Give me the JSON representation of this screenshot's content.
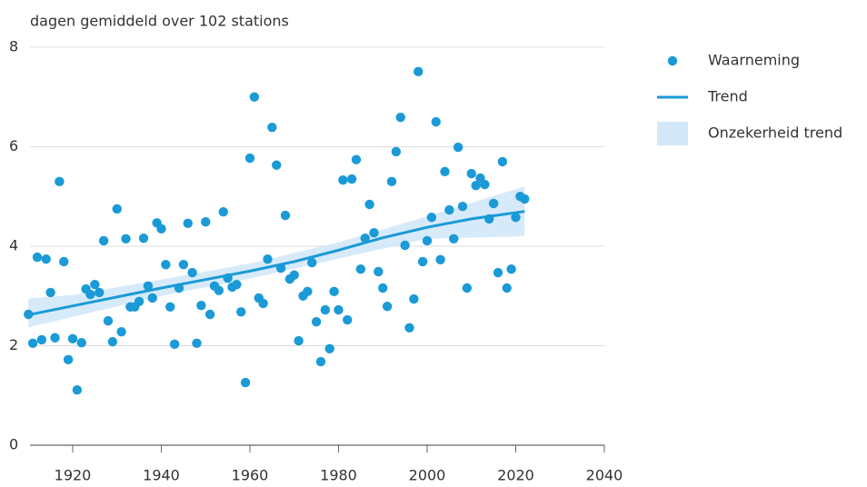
{
  "chart_data": {
    "type": "scatter",
    "y_label": "dagen gemiddeld over 102 stations",
    "xlim": [
      1910,
      2040
    ],
    "xticks": [
      1920,
      1940,
      1960,
      1980,
      2000,
      2020,
      2040
    ],
    "ylim": [
      0,
      8
    ],
    "yticks": [
      0,
      2,
      4,
      6,
      8
    ],
    "grid": true,
    "legend": "right",
    "series": [
      {
        "name": "Waarneming",
        "type": "scatter",
        "color": "#1a9ad6",
        "x": [
          1910,
          1911,
          1912,
          1913,
          1914,
          1915,
          1916,
          1917,
          1918,
          1919,
          1920,
          1921,
          1922,
          1923,
          1924,
          1925,
          1926,
          1927,
          1928,
          1929,
          1930,
          1931,
          1932,
          1933,
          1934,
          1935,
          1936,
          1937,
          1938,
          1939,
          1940,
          1941,
          1942,
          1943,
          1944,
          1945,
          1946,
          1947,
          1948,
          1949,
          1950,
          1951,
          1952,
          1953,
          1954,
          1955,
          1956,
          1957,
          1958,
          1959,
          1960,
          1961,
          1962,
          1963,
          1964,
          1965,
          1966,
          1967,
          1968,
          1969,
          1970,
          1971,
          1972,
          1973,
          1974,
          1975,
          1976,
          1977,
          1978,
          1979,
          1980,
          1981,
          1982,
          1983,
          1984,
          1985,
          1986,
          1987,
          1988,
          1989,
          1990,
          1991,
          1992,
          1993,
          1994,
          1995,
          1996,
          1997,
          1998,
          1999,
          2000,
          2001,
          2002,
          2003,
          2004,
          2005,
          2006,
          2007,
          2008,
          2009,
          2010,
          2011,
          2012,
          2013,
          2014,
          2015,
          2016,
          2017,
          2018,
          2019,
          2020,
          2021,
          2022
        ],
        "values": [
          2.63,
          2.05,
          3.78,
          2.12,
          3.74,
          3.07,
          2.16,
          5.3,
          3.69,
          1.72,
          2.14,
          1.11,
          2.06,
          3.14,
          3.03,
          3.23,
          3.07,
          4.11,
          2.5,
          2.08,
          4.75,
          2.28,
          4.15,
          2.78,
          2.78,
          2.89,
          4.16,
          3.2,
          2.96,
          4.47,
          4.35,
          3.63,
          2.78,
          2.03,
          3.16,
          3.63,
          4.46,
          3.47,
          2.05,
          2.81,
          4.49,
          2.63,
          3.2,
          3.11,
          4.69,
          3.36,
          3.18,
          3.23,
          2.68,
          1.26,
          5.77,
          7.0,
          2.96,
          2.85,
          3.74,
          6.39,
          5.63,
          3.56,
          4.62,
          3.34,
          3.42,
          2.1,
          3.0,
          3.09,
          3.67,
          2.48,
          1.68,
          2.72,
          1.94,
          3.09,
          2.72,
          5.33,
          2.52,
          5.35,
          5.74,
          3.54,
          4.16,
          4.84,
          4.27,
          3.49,
          3.16,
          2.79,
          5.3,
          5.9,
          6.59,
          4.02,
          2.36,
          2.94,
          7.51,
          3.69,
          4.11,
          4.58,
          6.5,
          3.73,
          5.5,
          4.73,
          4.15,
          5.99,
          4.8,
          3.16,
          5.46,
          5.22,
          5.37,
          5.24,
          4.55,
          4.86,
          3.47,
          5.7,
          3.16,
          3.54,
          4.58,
          5.0,
          4.95
        ]
      },
      {
        "name": "Trend",
        "type": "line",
        "color": "#1a9ad6",
        "x": [
          1910,
          1920,
          1930,
          1940,
          1950,
          1960,
          1970,
          1980,
          1990,
          2000,
          2010,
          2022
        ],
        "values": [
          2.62,
          2.8,
          2.98,
          3.16,
          3.33,
          3.5,
          3.69,
          3.92,
          4.17,
          4.38,
          4.55,
          4.7
        ]
      },
      {
        "name": "Onzekerheid trend",
        "type": "area",
        "color": "#d3e8f8",
        "x": [
          1910,
          1920,
          1940,
          1960,
          1980,
          2000,
          2022
        ],
        "lower": [
          2.37,
          2.58,
          3.0,
          3.35,
          3.75,
          4.15,
          4.2
        ],
        "upper": [
          2.95,
          3.02,
          3.33,
          3.65,
          4.08,
          4.6,
          5.2
        ]
      }
    ]
  }
}
